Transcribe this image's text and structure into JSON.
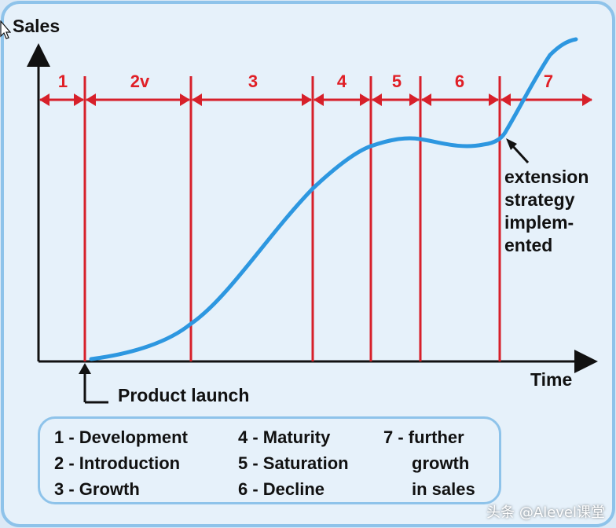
{
  "axes": {
    "y_label": "Sales",
    "x_label": "Time"
  },
  "stages": [
    "1",
    "2v",
    "3",
    "4",
    "5",
    "6",
    "7"
  ],
  "annotations": {
    "launch": "Product launch",
    "extension_lines": [
      "extension",
      "strategy",
      "implem-",
      "ented"
    ]
  },
  "legend": {
    "col1": [
      "1 - Development",
      "2 - Introduction",
      "3 - Growth"
    ],
    "col2": [
      "4 - Maturity",
      "5 - Saturation",
      "6 - Decline"
    ],
    "col3": [
      "7 - further",
      "growth",
      "in sales"
    ]
  },
  "watermark": "头条 @Alevel课堂",
  "colors": {
    "curve": "#2d97e0",
    "stage_lines": "#d7202a",
    "axes": "#111111",
    "background": "#dbe9f6",
    "panel_border": "#8ec3ea"
  },
  "icons": [
    "cursor-icon"
  ]
}
